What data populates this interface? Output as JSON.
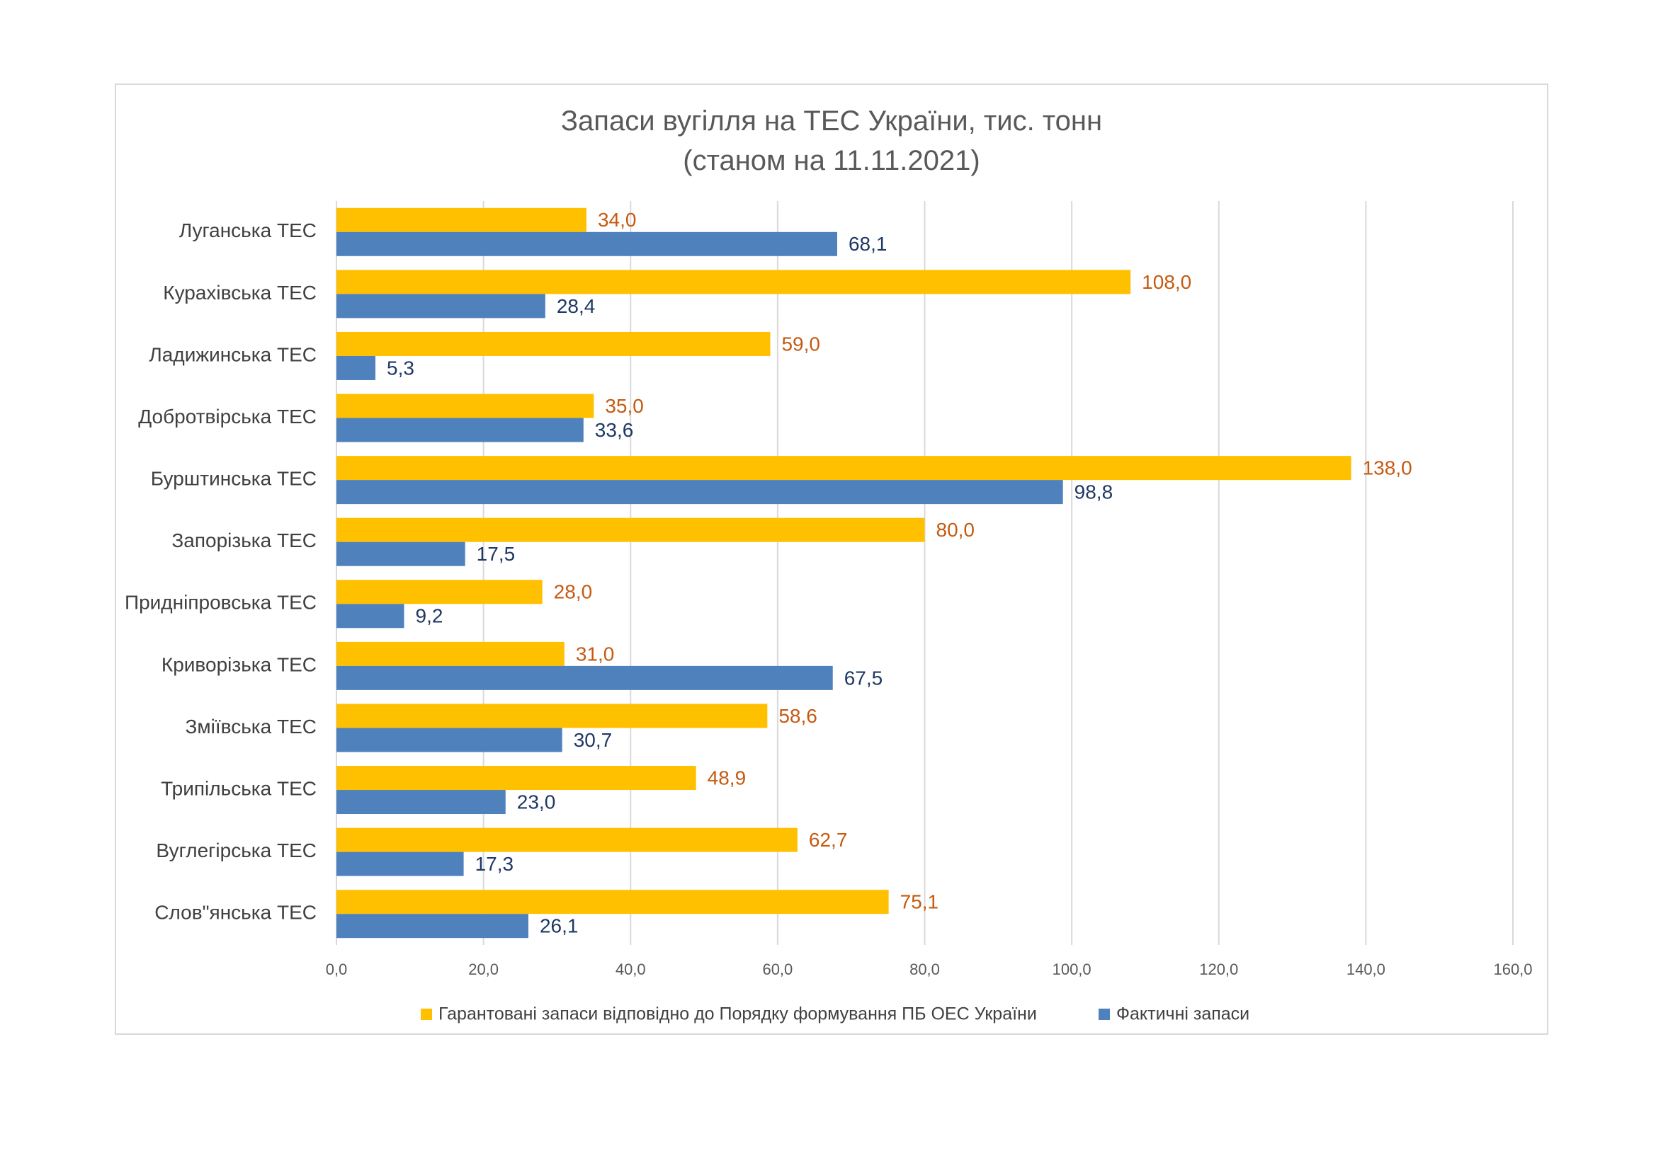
{
  "chart_data": {
    "type": "bar",
    "orientation": "horizontal",
    "title_lines": [
      "Запаси вугілля на ТЕС України, тис. тонн",
      "(станом на 11.11.2021)"
    ],
    "categories": [
      "Луганська ТЕС",
      "Курахівська ТЕС",
      "Ладижинська ТЕС",
      "Добротвірська ТЕС",
      "Бурштинська ТЕС",
      "Запорізька ТЕС",
      "Придніпровська ТЕС",
      "Криворізька ТЕС",
      "Зміївська ТЕС",
      "Трипільська ТЕС",
      "Вуглегірська ТЕС",
      "Слов\"янська ТЕС"
    ],
    "series": [
      {
        "name": "Гарантовані запаси відповідно до Порядку формування ПБ ОЕС України",
        "color": "#ffc000",
        "label_color": "#c55a11",
        "values": [
          34.0,
          108.0,
          59.0,
          35.0,
          138.0,
          80.0,
          28.0,
          31.0,
          58.6,
          48.9,
          62.7,
          75.1
        ],
        "labels": [
          "34,0",
          "108,0",
          "59,0",
          "35,0",
          "138,0",
          "80,0",
          "28,0",
          "31,0",
          "58,6",
          "48,9",
          "62,7",
          "75,1"
        ]
      },
      {
        "name": "Фактичні запаси",
        "color": "#4f81bd",
        "label_color": "#1f3864",
        "values": [
          68.1,
          28.4,
          5.3,
          33.6,
          98.8,
          17.5,
          9.2,
          67.5,
          30.7,
          23.0,
          17.3,
          26.1
        ],
        "labels": [
          "68,1",
          "28,4",
          "5,3",
          "33,6",
          "98,8",
          "17,5",
          "9,2",
          "67,5",
          "30,7",
          "23,0",
          "17,3",
          "26,1"
        ]
      }
    ],
    "xlim": [
      0,
      160
    ],
    "xticks": [
      0,
      20,
      40,
      60,
      80,
      100,
      120,
      140,
      160
    ],
    "xtick_labels": [
      "0,0",
      "20,0",
      "40,0",
      "60,0",
      "80,0",
      "100,0",
      "120,0",
      "140,0",
      "160,0"
    ],
    "grid": "vertical",
    "legend_position": "bottom"
  }
}
